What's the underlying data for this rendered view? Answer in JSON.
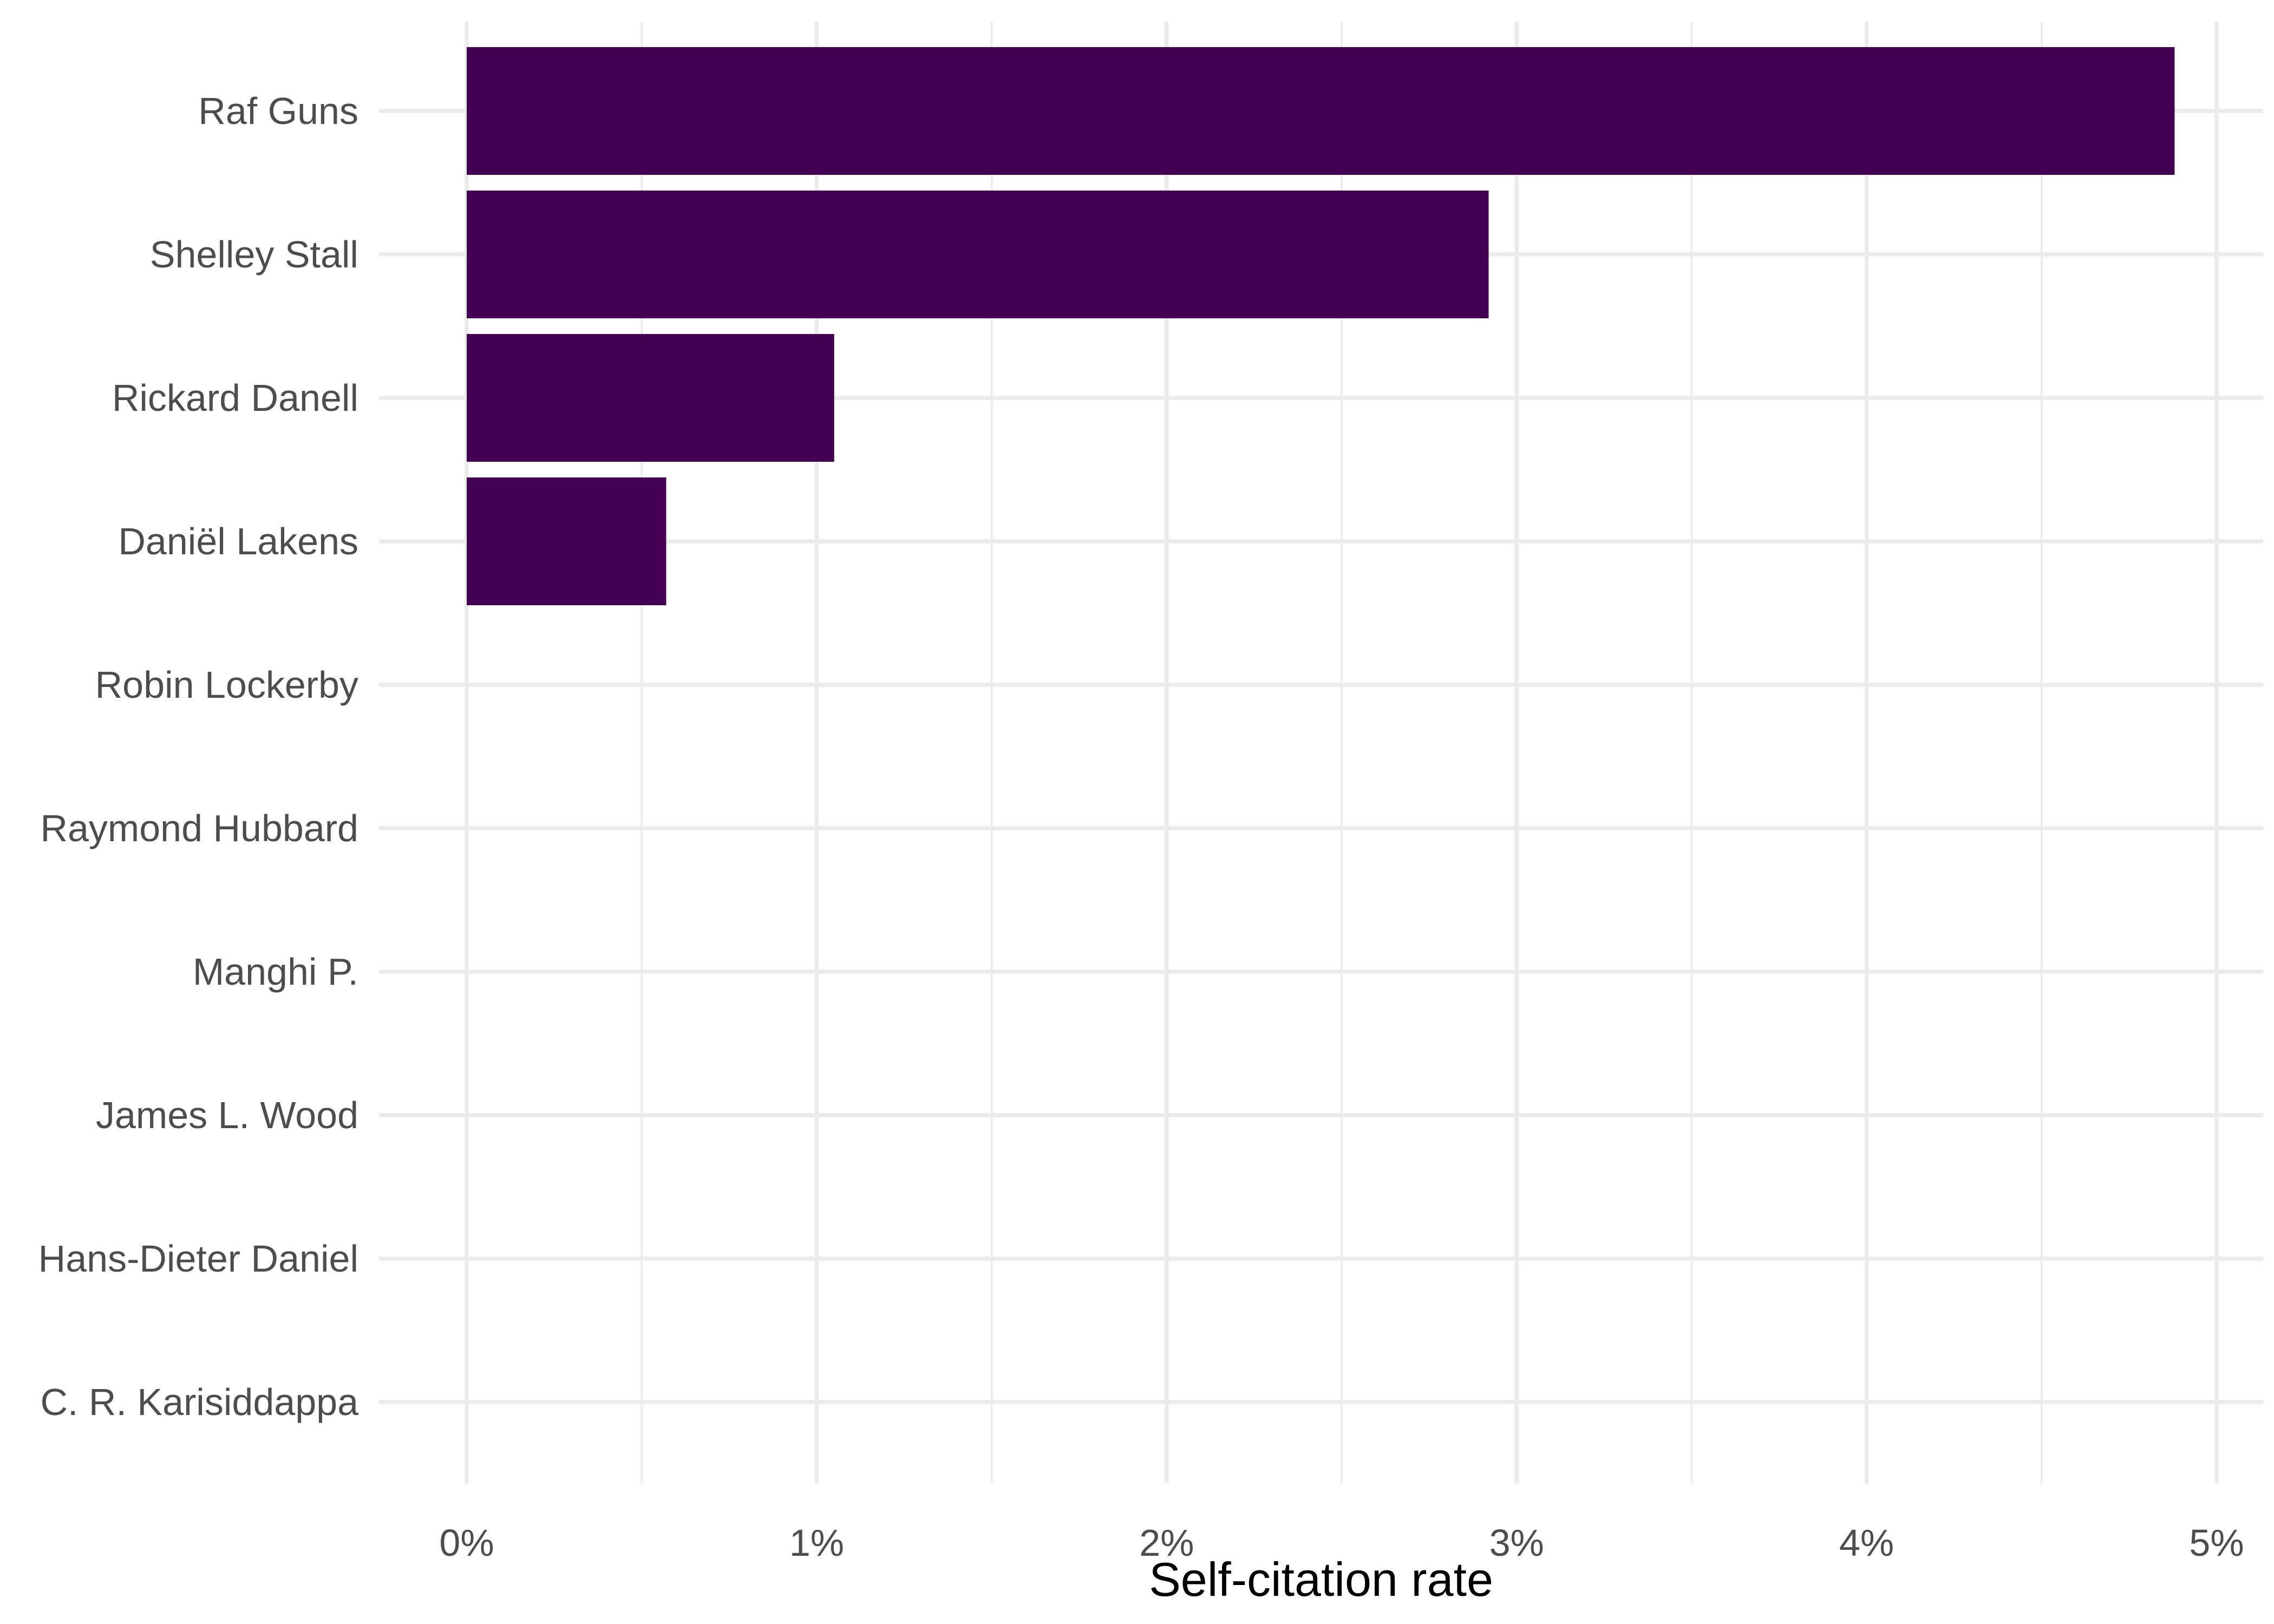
{
  "chart_data": {
    "type": "bar",
    "orientation": "horizontal",
    "categories": [
      "Raf Guns",
      "Shelley Stall",
      "Rickard Danell",
      "Daniël Lakens",
      "Robin Lockerby",
      "Raymond Hubbard",
      "Manghi P.",
      "James L. Wood",
      "Hans-Dieter Daniel",
      "C. R. Karisiddappa"
    ],
    "values": [
      4.88,
      2.92,
      1.05,
      0.57,
      0,
      0,
      0,
      0,
      0,
      0
    ],
    "xlabel": "Self-citation rate",
    "ylabel": "",
    "xlim": [
      0,
      5
    ],
    "x_ticks": [
      0,
      1,
      2,
      3,
      4,
      5
    ],
    "x_tick_labels": [
      "0%",
      "1%",
      "2%",
      "3%",
      "4%",
      "5%"
    ],
    "bar_color": "#440154",
    "grid": true,
    "legend": "none"
  }
}
